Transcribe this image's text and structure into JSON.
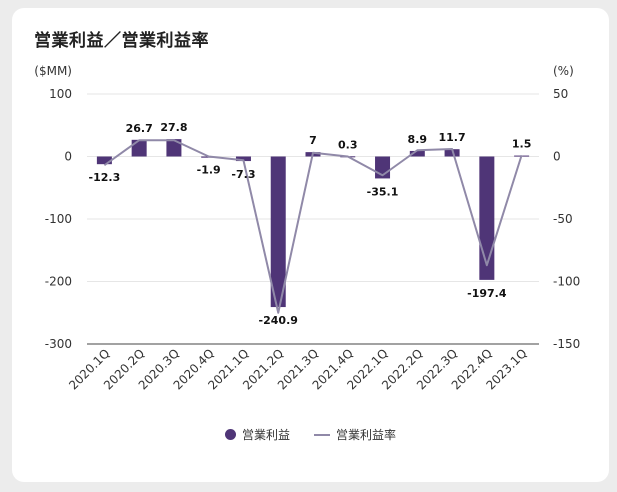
{
  "title": "営業利益／営業利益率",
  "chart_data": {
    "type": "bar",
    "categories": [
      "2020.1Q",
      "2020.2Q",
      "2020.3Q",
      "2020.4Q",
      "2021.1Q",
      "2021.2Q",
      "2021.3Q",
      "2021.4Q",
      "2022.1Q",
      "2022.2Q",
      "2022.3Q",
      "2022.4Q",
      "2023.1Q"
    ],
    "series": [
      {
        "name": "営業利益",
        "type": "bar",
        "axis": "left",
        "values": [
          -12.3,
          26.7,
          27.8,
          -1.9,
          -7.3,
          -240.9,
          7,
          0.3,
          -35.1,
          8.9,
          11.7,
          -197.4,
          1.5
        ],
        "labels": [
          "-12.3",
          "26.7",
          "27.8",
          "-1.9",
          "-7.3",
          "-240.9",
          "7",
          "0.3",
          "-35.1",
          "8.9",
          "11.7",
          "-197.4",
          "1.5"
        ]
      },
      {
        "name": "営業利益率",
        "type": "line",
        "axis": "right",
        "values": [
          -7,
          13,
          13,
          0,
          -3,
          -125,
          3,
          0,
          -15,
          5,
          6,
          -87,
          1
        ]
      }
    ],
    "y_left": {
      "unit": "($MM)",
      "ylim": [
        -300,
        100
      ],
      "ticks": [
        "100",
        "0",
        "-100",
        "-200",
        "-300"
      ]
    },
    "y_right": {
      "unit": "(%)",
      "ylim": [
        -150,
        50
      ],
      "ticks": [
        "50",
        "0",
        "-50",
        "-100",
        "-150"
      ]
    },
    "colors": {
      "bar": "#4f3577",
      "line": "#9089a8"
    },
    "legend": "bottom",
    "grid": true
  }
}
